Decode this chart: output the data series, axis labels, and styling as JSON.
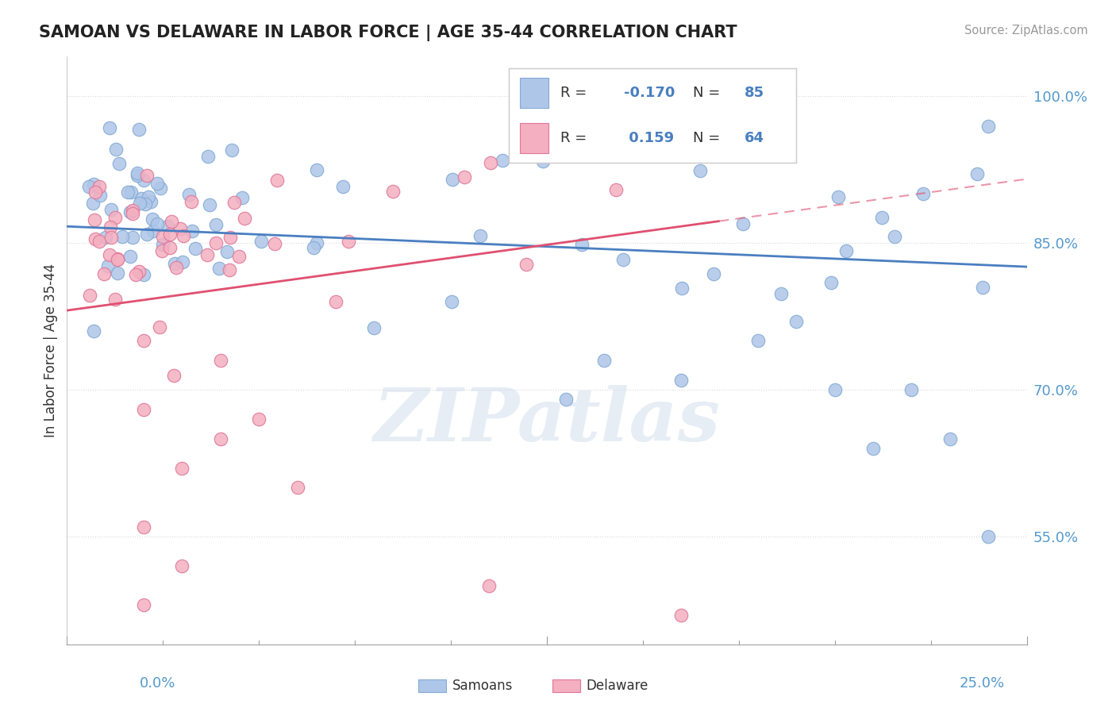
{
  "title": "SAMOAN VS DELAWARE IN LABOR FORCE | AGE 35-44 CORRELATION CHART",
  "source": "Source: ZipAtlas.com",
  "ylabel": "In Labor Force | Age 35-44",
  "y_ticks": [
    0.55,
    0.7,
    0.85,
    1.0
  ],
  "y_tick_labels": [
    "55.0%",
    "70.0%",
    "85.0%",
    "100.0%"
  ],
  "x_range": [
    0.0,
    0.25
  ],
  "y_range": [
    0.44,
    1.04
  ],
  "legend_samoans": "Samoans",
  "legend_delaware": "Delaware",
  "blue_dot_color": "#aec6e8",
  "pink_dot_color": "#f4afc0",
  "blue_edge_color": "#85aad4",
  "pink_edge_color": "#e07898",
  "blue_line_color": "#4a7fc0",
  "pink_line_color": "#e05070",
  "blue_r": -0.17,
  "pink_r": 0.159,
  "blue_n": 85,
  "pink_n": 64,
  "tick_color": "#5599cc",
  "label_color": "#333333",
  "grid_color": "#d8d8d8",
  "watermark": "ZIPatlas",
  "background_color": "#ffffff"
}
